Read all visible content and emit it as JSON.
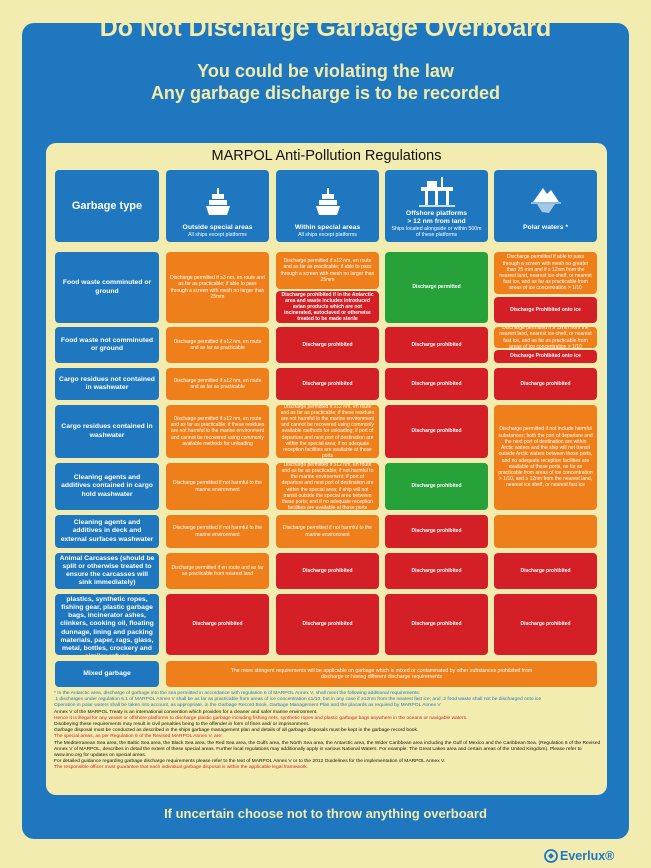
{
  "title": "Do Not Discharge Garbage Overboard",
  "subtitle1": "You could be violating the law",
  "subtitle2": "Any garbage discharge is to be recorded",
  "panel_title": "MARPOL Anti-Pollution Regulations",
  "header": {
    "garbage_type": "Garbage type",
    "col1": {
      "label": "Outside special areas",
      "sub": "All ships except platforms"
    },
    "col2": {
      "label": "Within special areas",
      "sub": "All ships except platforms"
    },
    "col3": {
      "label": "Offshore platforms",
      "label2": "> 12 nm from land",
      "sub": "Ships located alongside or within 500m of these platforms"
    },
    "col4": {
      "label": "Polar waters *"
    }
  },
  "rows": {
    "r1": {
      "label": "Food waste comminuted or ground",
      "c1": "Discharge permitted if ≥3 nm, en route and as far as practicable; if able to pass through a screen with mesh no larger than 25mm",
      "c2a": "Discharge permitted if ≥12 nm, en route and as far as practicable; if able to pass through a screen with mesh no larger than 25mm",
      "c2b": "Discharge prohibited if in the Antarctic area and waste includes introduced avian products which are not incinerated, autoclaved or otherwise treated to be made sterile",
      "c3": "Discharge permitted",
      "c4a": "Discharge permitted if able to pass through a screen with mesh no greater than 25 mm and if ≥ 12nm from the nearest land, nearest ice-shelf, or nearest fast ice, and as far as practicable from areas of ice concentration > 1/10",
      "c4b": "Discharge Prohibited onto ice"
    },
    "r2": {
      "label": "Food waste not comminuted or ground",
      "c1": "Discharge permitted if ≥12 nm, en route and as far as practicable",
      "c2": "Discharge prohibited",
      "c3": "Discharge prohibited",
      "c4a": "Discharge permitted if ≥ 12nm from the nearest land, nearest ice-shelf, or nearest fast ice, and as far as practicable from areas of ice concentration > 1/10",
      "c4b": "Discharge Prohibited onto ice"
    },
    "r3": {
      "label": "Cargo residues not contained in washwater",
      "c1": "Discharge permitted if ≥12 nm, en route and as far as practicable",
      "c2": "Discharge prohibited",
      "c3": "Discharge prohibited",
      "c4": "Discharge prohibited"
    },
    "r4": {
      "label": "Cargo residues contained in washwater",
      "c1": "Discharge permitted if ≥12 nm, en route and as far as practicable; if these residues are not harmful to the marine environment and cannot be recovered using commonly available methods for unloading",
      "c2": "Discharge permitted if ≥12 nm, en route and as far as practicable; if these residues are not harmful to the marine environment and cannot be recovered using commonly available methods for unloading; if port of departure and next port of destination are within the special area; if no adequate reception facilities are available at those ports",
      "c3": "Discharge prohibited"
    },
    "r5": {
      "label": "Cleaning agents and additives contained in cargo hold washwater",
      "c1": "Discharge permitted if not harmful to the marine environment",
      "c2": "Discharge permitted if ≥12 nm, en route and as far as practicable; if not harmful to the marine environment; if port of departure and next port of destination are within the special area; if ship will not transit outside the special area between these ports; and if no adequate reception facilities are available at those ports",
      "c3": "Discharge prohibited"
    },
    "r45_c4": "Discharge permitted if not include harmful substances; both the port of departure and the next port of destination are within Arctic waters and the ship will not transit outside Arctic waters between those ports, and no adequate reception facilities are available at those ports, as far as practicable from areas of ice concentration > 1/10, and ≥ 12nm from the nearest land, nearest ice shelf, or nearest fast ice",
    "r6": {
      "label": "Cleaning agents and additives in deck and external surfaces washwater",
      "c1": "Discharge permitted if not harmful to the marine environment",
      "c2": "Discharge permitted if not harmful to the marine environment",
      "c3": "Discharge prohibited"
    },
    "r7": {
      "label": "Animal Carcasses (should be split or otherwise treated to ensure the carcasses will sink immediately)",
      "c1": "Discharge permitted if en route and as far as practicable from nearest land",
      "c2": "Discharge prohibited",
      "c3": "Discharge prohibited",
      "c4": "Discharge prohibited"
    },
    "r8": {
      "label": "All other garbage including plastics, synthetic ropes, fishing gear, plastic garbage bags, incinerator ashes, clinkers, cooking oil, floating dunnage, lining and packing materials, paper, rags, glass, metal, bottles, crockery and similar refuse",
      "c1": "Discharge prohibited",
      "c2": "Discharge prohibited",
      "c3": "Discharge prohibited",
      "c4": "Discharge prohibited"
    },
    "r9": {
      "label": "Mixed garbage",
      "merged": "The more stringent requirements will be applicable on garbage which is mixed or contaminated by other substances prohibited from discharge or having different discharge requirements"
    }
  },
  "notes": {
    "n1": "* In the Antarctic area, discharge of garbage into the sea permitted in accordance with regulation 6 of MARPOL Annex V, shall meet the following additional requirements:",
    "n2": ".1 discharges under regulation 6.1 of MARPOL Annex V shall be as far as practicable from areas of ice concentration ≤1/10, but in any case if ≥12nm from the nearest fast ice; and .2 food waste shall not be discharged onto ice",
    "n3": "Operation in polar waters shall be taken into account, as appropriate, in the Garbage Record Book, Garbage Management Plan and the placards as required by MARPOL Annex V",
    "n4": "Annex V of the MARPOL Treaty is an international convention which provides for a cleaner and safer marine environment.",
    "n5": "Hence it is illegal for any vessel or offshore platforms to discharge plastic garbage including fishing nets, synthetic ropes and plastic garbage bags anywhere in the oceans or navigable waters.",
    "n6": "Disobeying these requirements may result in civil penalties being to the offender in form of fines and/ or imprisonment.",
    "n7": "Garbage disposal must be conducted as described in the ships garbage management plan and details of all garbage disposals must be kept in the garbage record book.",
    "n8": "The special areas, as per Regulation 6 of the Revised MARPOL Annex V, are:",
    "n9": "The Mediterranean Sea area, the Baltic Sea area, the Black Sea area, the Red Sea area, the Gulfs area, the North Sea area, the Antarctic area, the Wider Caribbean area including the Gulf of Mexico and the Caribbean Sea. (Regulation 6 of the Revised Annex V of MARPOL, describes in detail the extent of these special areas. Further local regulations may additionally apply in various National Waters. For example: The Great Lakes area and certain areas of the United Kingdom). Please refer to www.imo.org for updates on special areas.",
    "n10": "For detailed guidance regarding garbage discharge requirements please refer to the text of MARPOL Annex V or to the 2012 Guidelines for the implementation of MARPOL Annex V.",
    "n11": "The responsible officer must guarantee that each individual garbage disposal is within the applicable legal framework."
  },
  "footer": "If uncertain choose not to throw anything overboard",
  "logo": "Everlux®",
  "colors": {
    "blue": "#1f78bf",
    "cream": "#f3ecb0",
    "orange": "#ef7f1a",
    "red": "#d41f26",
    "green": "#27a23a"
  }
}
